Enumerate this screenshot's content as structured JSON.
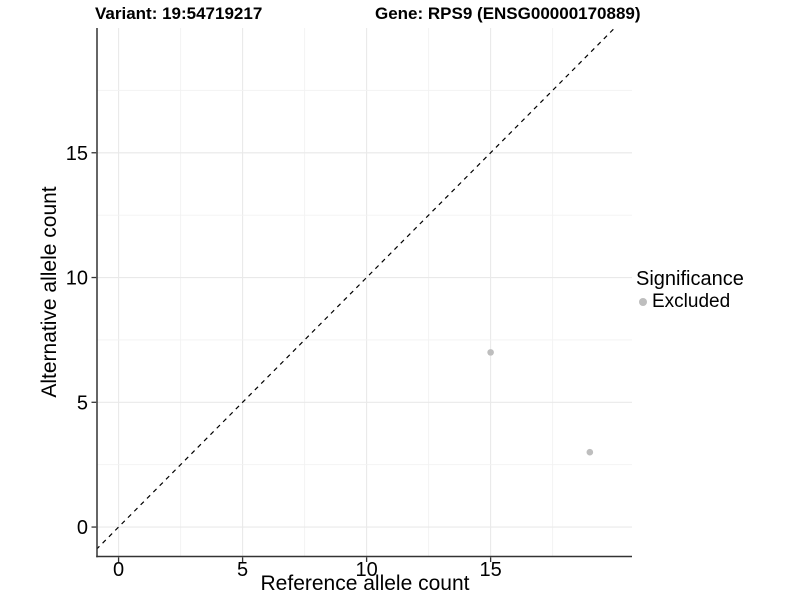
{
  "titles": {
    "variant": "Variant: 19:54719217",
    "gene": "Gene: RPS9 (ENSG00000170889)"
  },
  "axes": {
    "x_label": "Reference allele count",
    "y_label": "Alternative allele count"
  },
  "legend": {
    "title": "Significance",
    "items": [
      {
        "label": "Excluded",
        "color": "#bebebe"
      }
    ]
  },
  "colors": {
    "background": "#ffffff",
    "axis_line": "#333333",
    "grid_major": "#e9e9e9",
    "grid_minor": "#f2f2f2",
    "point": "#bebebe",
    "identity_line": "#000000",
    "text": "#000000"
  },
  "chart_data": {
    "type": "scatter",
    "title": "Variant: 19:54719217 | Gene: RPS9 (ENSG00000170889)",
    "xlabel": "Reference allele count",
    "ylabel": "Alternative allele count",
    "series": [
      {
        "name": "Excluded",
        "color": "#bebebe",
        "points": [
          [
            15,
            7
          ],
          [
            19,
            3
          ]
        ]
      }
    ],
    "identity_line": {
      "slope": 1,
      "intercept": 0,
      "style": "dashed",
      "color": "#000000"
    },
    "x_ticks": [
      0,
      5,
      10,
      15
    ],
    "y_ticks": [
      0,
      5,
      10,
      15
    ],
    "grid_x": [
      0,
      2.5,
      5,
      7.5,
      10,
      12.5,
      15,
      17.5
    ],
    "grid_y": [
      0,
      2.5,
      5,
      7.5,
      10,
      12.5,
      15,
      17.5
    ],
    "xlim": [
      -0.87,
      20.7
    ],
    "ylim": [
      -1.18,
      20.0
    ],
    "grid": true,
    "legend_position": "right",
    "legend_title": "Significance",
    "legend_items": [
      "Excluded"
    ]
  }
}
